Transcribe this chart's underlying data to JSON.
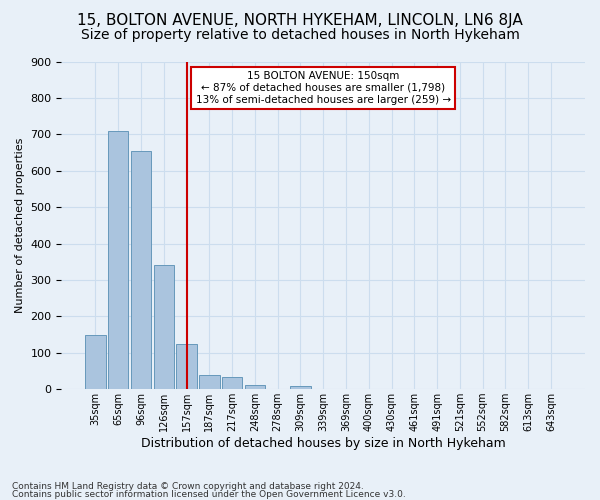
{
  "title1": "15, BOLTON AVENUE, NORTH HYKEHAM, LINCOLN, LN6 8JA",
  "title2": "Size of property relative to detached houses in North Hykeham",
  "xlabel": "Distribution of detached houses by size in North Hykeham",
  "ylabel": "Number of detached properties",
  "footnote1": "Contains HM Land Registry data © Crown copyright and database right 2024.",
  "footnote2": "Contains public sector information licensed under the Open Government Licence v3.0.",
  "bin_labels": [
    "35sqm",
    "65sqm",
    "96sqm",
    "126sqm",
    "157sqm",
    "187sqm",
    "217sqm",
    "248sqm",
    "278sqm",
    "309sqm",
    "339sqm",
    "369sqm",
    "400sqm",
    "430sqm",
    "461sqm",
    "491sqm",
    "521sqm",
    "552sqm",
    "582sqm",
    "613sqm",
    "643sqm"
  ],
  "bar_values": [
    150,
    710,
    655,
    340,
    125,
    40,
    33,
    12,
    0,
    8,
    0,
    0,
    0,
    0,
    0,
    0,
    0,
    0,
    0,
    0,
    0
  ],
  "bar_color": "#aac4de",
  "bar_edge_color": "#6699bb",
  "vline_x": 4,
  "vline_color": "#cc0000",
  "annotation_text": "15 BOLTON AVENUE: 150sqm\n← 87% of detached houses are smaller (1,798)\n13% of semi-detached houses are larger (259) →",
  "annotation_box_color": "#ffffff",
  "annotation_box_edge": "#cc0000",
  "ylim": [
    0,
    900
  ],
  "yticks": [
    0,
    100,
    200,
    300,
    400,
    500,
    600,
    700,
    800,
    900
  ],
  "grid_color": "#ccddee",
  "bg_color": "#e8f0f8",
  "title1_fontsize": 11,
  "title2_fontsize": 10
}
